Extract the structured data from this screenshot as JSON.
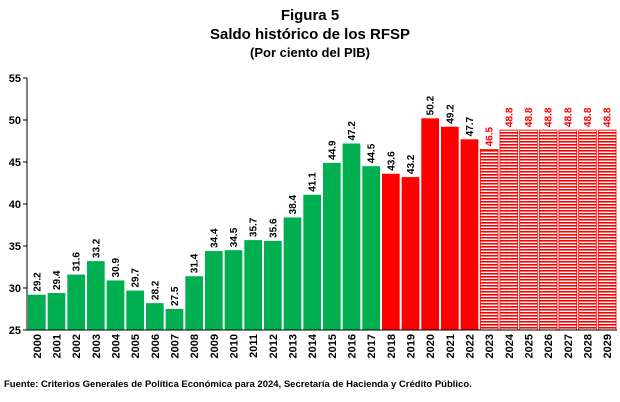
{
  "figure": {
    "label": "Figura 5",
    "title": "Saldo histórico de los RFSP",
    "subtitle": "(Por ciento del PIB)",
    "source": "Fuente: Criterios Generales de Política Económica para 2024, Secretaría de Hacienda y Crédito Público."
  },
  "chart_data": {
    "type": "bar",
    "title": "Saldo histórico de los RFSP",
    "subtitle": "(Por ciento del PIB)",
    "xlabel": "",
    "ylabel": "",
    "ylim": [
      25,
      55
    ],
    "yticks": [
      25,
      30,
      35,
      40,
      45,
      50,
      55
    ],
    "grid": false,
    "legend": "none",
    "categories": [
      "2000",
      "2001",
      "2002",
      "2003",
      "2004",
      "2005",
      "2006",
      "2007",
      "2008",
      "2009",
      "2010",
      "2011",
      "2012",
      "2013",
      "2014",
      "2015",
      "2016",
      "2017",
      "2018",
      "2019",
      "2020",
      "2021",
      "2022",
      "2023",
      "2024",
      "2025",
      "2026",
      "2027",
      "2028",
      "2029"
    ],
    "values": [
      29.2,
      29.4,
      31.6,
      33.2,
      30.9,
      29.7,
      28.2,
      27.5,
      31.4,
      34.4,
      34.5,
      35.7,
      35.6,
      38.4,
      41.1,
      44.9,
      47.2,
      44.5,
      43.6,
      43.2,
      50.2,
      49.2,
      47.7,
      46.5,
      48.8,
      48.8,
      48.8,
      48.8,
      48.8,
      48.8
    ],
    "value_labels": [
      "29.2",
      "29.4",
      "31.6",
      "33.2",
      "30.9",
      "29.7",
      "28.2",
      "27.5",
      "31.4",
      "34.4",
      "34.5",
      "35.7",
      "35.6",
      "38.4",
      "41.1",
      "44.9",
      "47.2",
      "44.5",
      "43.6",
      "43.2",
      "50.2",
      "49.2",
      "47.7",
      "46.5",
      "48.8",
      "48.8",
      "48.8",
      "48.8",
      "48.8",
      "48.8"
    ],
    "styles": [
      "green",
      "green",
      "green",
      "green",
      "green",
      "green",
      "green",
      "green",
      "green",
      "green",
      "green",
      "green",
      "green",
      "green",
      "green",
      "green",
      "green",
      "green",
      "red",
      "red",
      "red",
      "red",
      "red",
      "striped",
      "striped",
      "striped",
      "striped",
      "striped",
      "striped",
      "striped"
    ],
    "colors": {
      "green": "#00b050",
      "red": "#ff0000",
      "stripe": "#ff0000",
      "projection_label": "#ff0000",
      "label": "#000000"
    }
  }
}
